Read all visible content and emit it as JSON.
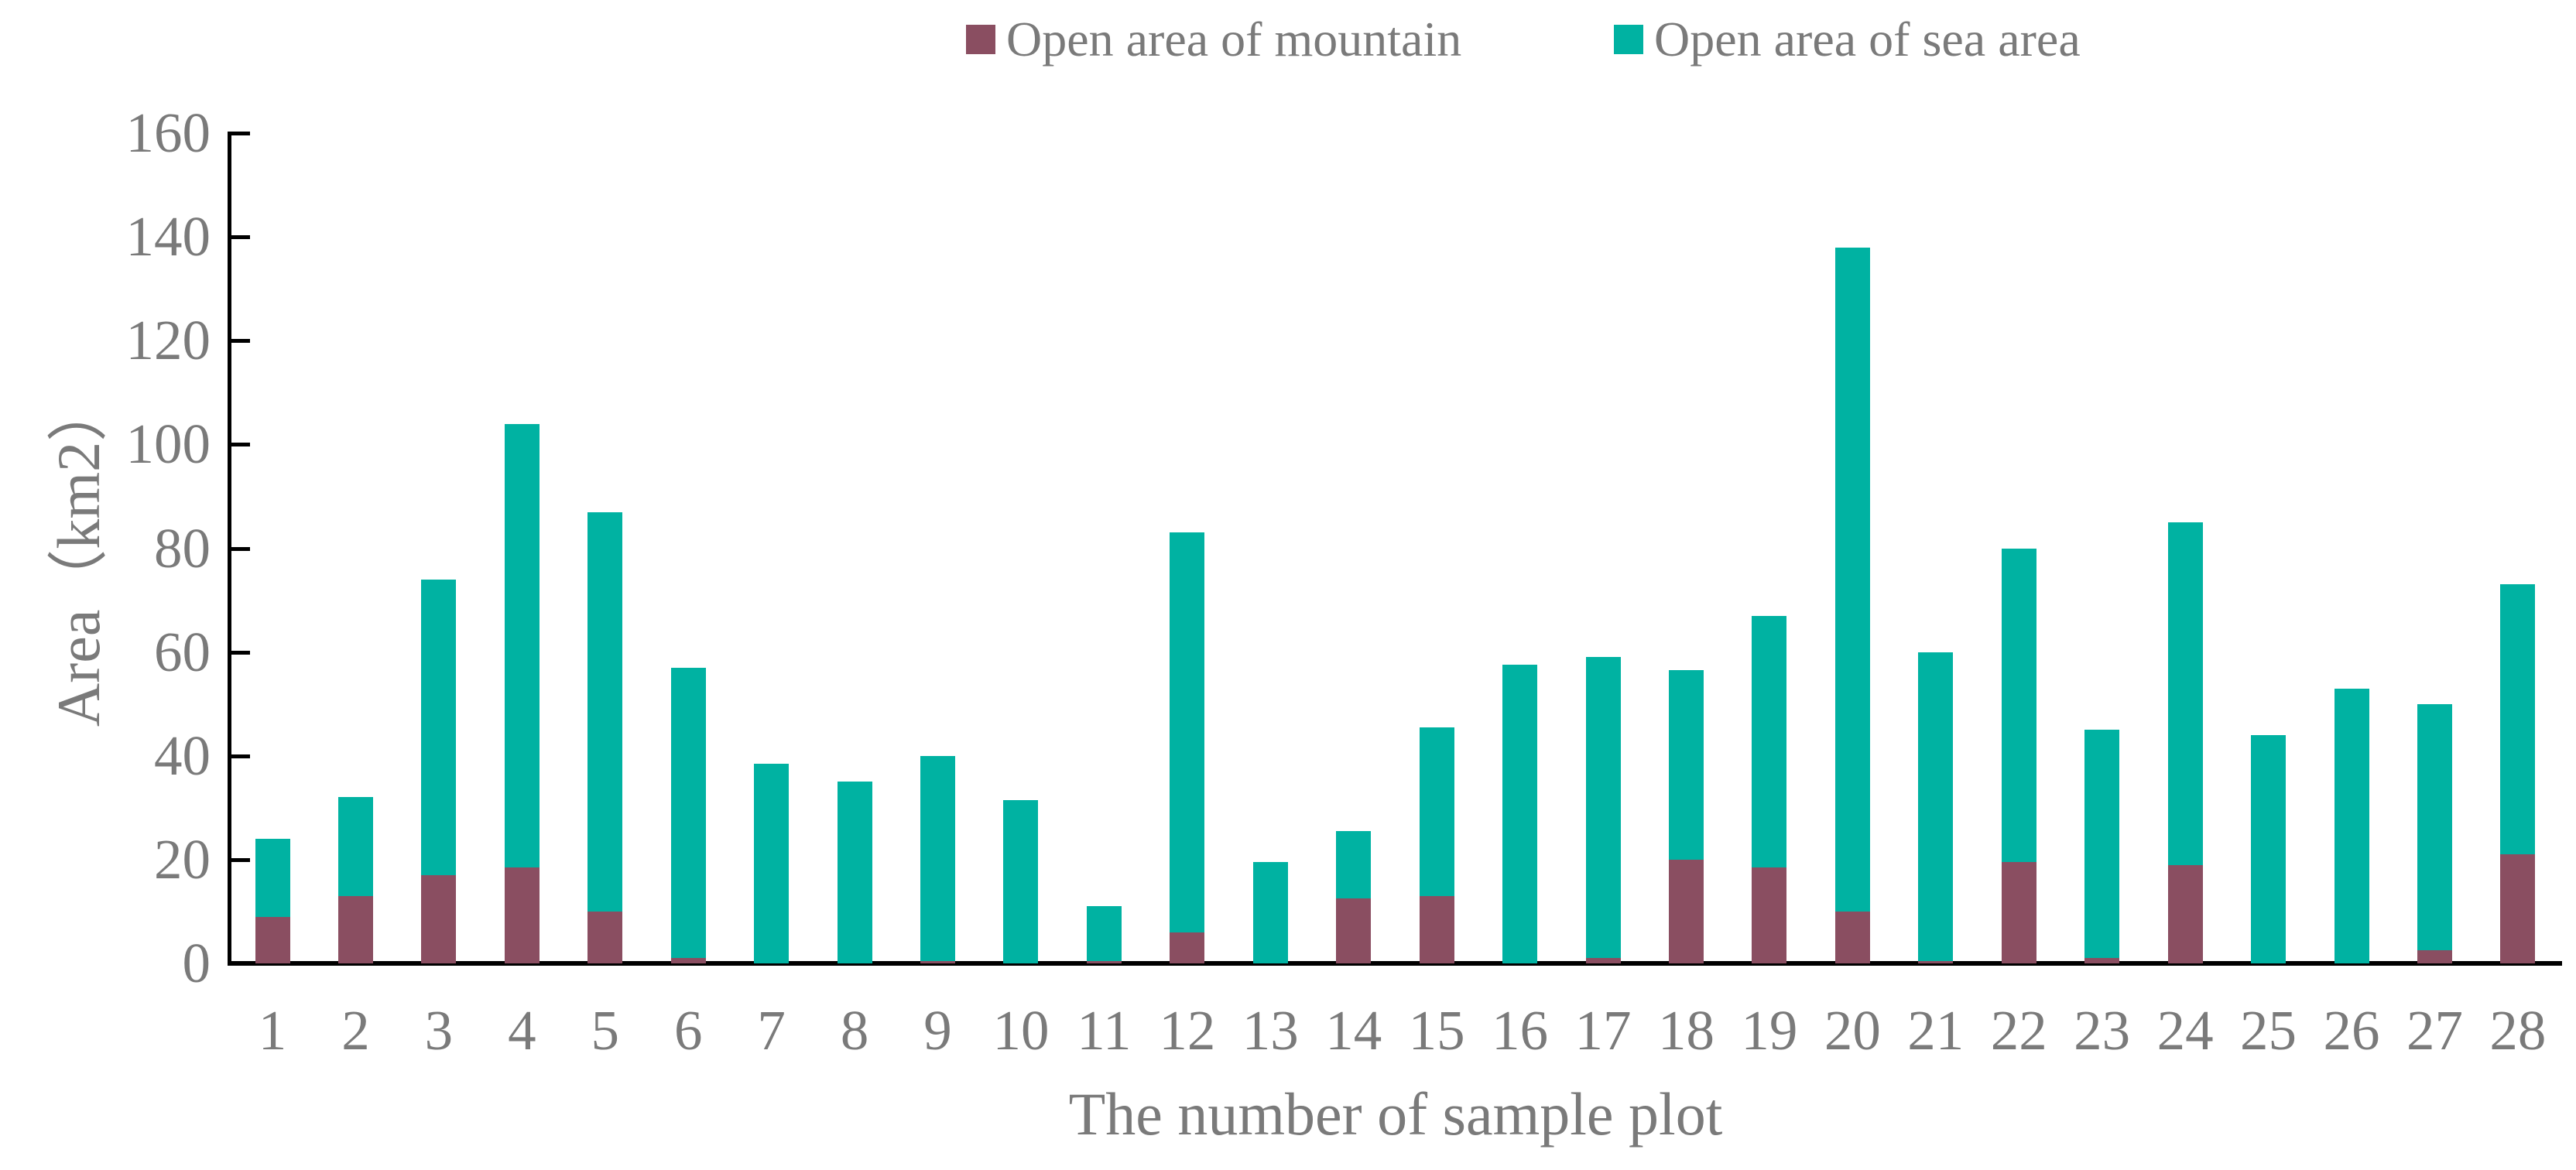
{
  "chart_data": {
    "type": "bar",
    "stacked": true,
    "title": "",
    "xlabel": "The number of sample plot",
    "ylabel": "Area（km2）",
    "categories": [
      "1",
      "2",
      "3",
      "4",
      "5",
      "6",
      "7",
      "8",
      "9",
      "10",
      "11",
      "12",
      "13",
      "14",
      "15",
      "16",
      "17",
      "18",
      "19",
      "20",
      "21",
      "22",
      "23",
      "24",
      "25",
      "26",
      "27",
      "28"
    ],
    "series": [
      {
        "name": "Open area of mountain",
        "color": "#8A4E61",
        "values": [
          9,
          13,
          17,
          18.5,
          10,
          1,
          0,
          0,
          0.5,
          0,
          0.5,
          6,
          0,
          12.5,
          13,
          0,
          1,
          20,
          18.5,
          10,
          0.5,
          19.5,
          1,
          19,
          0,
          0,
          2.5,
          21
        ]
      },
      {
        "name": "Open area of sea area",
        "color": "#00B2A2",
        "values": [
          15,
          19,
          57,
          85.5,
          77,
          56,
          38.5,
          35,
          39.5,
          31.5,
          10.5,
          77,
          19.5,
          13,
          32.5,
          57.5,
          58,
          36.5,
          48.5,
          128,
          59.5,
          60.5,
          44,
          66,
          44,
          53,
          47.5,
          52
        ]
      }
    ],
    "ylim": [
      0,
      160
    ],
    "yticks": [
      "0",
      "20",
      "40",
      "60",
      "80",
      "100",
      "120",
      "140",
      "160"
    ],
    "ytick_interval": 20,
    "grid": false,
    "legend_position": "top",
    "axis_color": "#000000",
    "text_color": "#7a7a7a"
  }
}
